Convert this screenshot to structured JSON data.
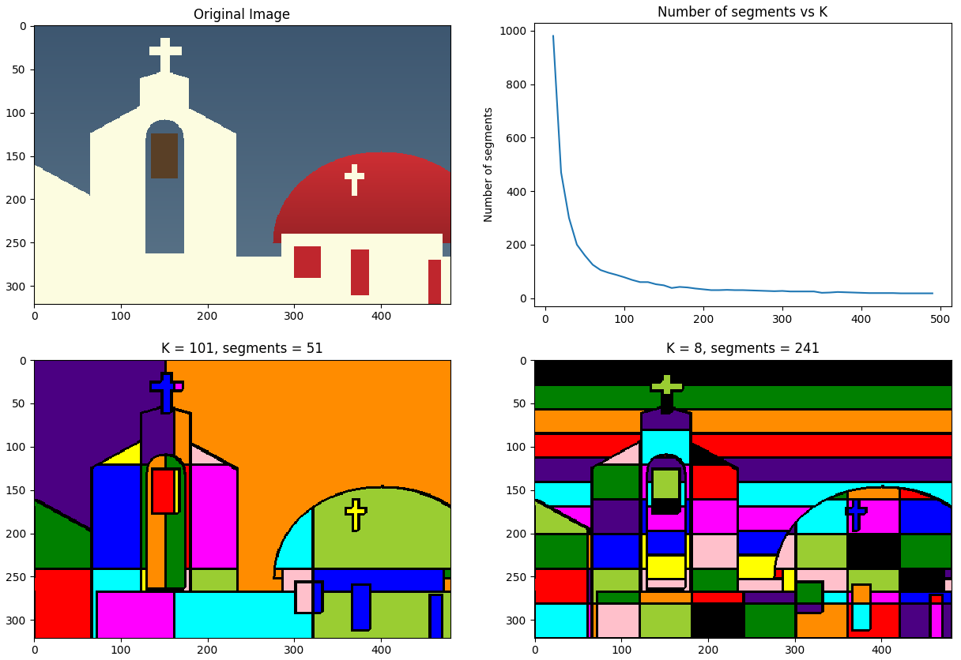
{
  "chart_data": [
    {
      "type": "image",
      "title": "Original Image",
      "xlim": [
        -0.5,
        480.5
      ],
      "ylim": [
        320.5,
        -0.5
      ],
      "xticks": [
        0,
        100,
        200,
        300,
        400
      ],
      "yticks": [
        0,
        50,
        100,
        150,
        200,
        250,
        300
      ]
    },
    {
      "type": "line",
      "title": "Number of segments vs K",
      "ylabel": "Number of segments",
      "color": "#1f77b4",
      "x": [
        10,
        20,
        30,
        40,
        50,
        60,
        70,
        80,
        90,
        100,
        110,
        120,
        130,
        140,
        150,
        160,
        170,
        180,
        190,
        200,
        210,
        220,
        230,
        240,
        250,
        260,
        270,
        280,
        290,
        300,
        310,
        320,
        330,
        340,
        350,
        360,
        370,
        380,
        390,
        400,
        410,
        420,
        430,
        440,
        450,
        460,
        470,
        480,
        490
      ],
      "values": [
        980,
        470,
        300,
        200,
        160,
        125,
        105,
        95,
        87,
        78,
        68,
        60,
        60,
        52,
        48,
        38,
        42,
        40,
        36,
        33,
        30,
        30,
        31,
        30,
        30,
        29,
        28,
        27,
        26,
        27,
        25,
        25,
        25,
        25,
        20,
        21,
        23,
        22,
        21,
        20,
        19,
        19,
        19,
        19,
        18,
        18,
        18,
        18,
        18
      ],
      "xlim": [
        -14,
        514
      ],
      "ylim": [
        -30,
        1028
      ],
      "xticks": [
        0,
        100,
        200,
        300,
        400,
        500
      ],
      "yticks": [
        0,
        200,
        400,
        600,
        800,
        1000
      ]
    },
    {
      "type": "segmentation",
      "title": "K = 101, segments = 51",
      "colors": [
        "#4b0082",
        "#ff8c00",
        "#008000",
        "#ff0000",
        "#ffff00",
        "#ffc0cb",
        "#0000ff",
        "#ff00ff",
        "#00ffff",
        "#9acd32"
      ],
      "color": "#000000",
      "xlim": [
        -0.5,
        480.5
      ],
      "ylim": [
        320.5,
        -0.5
      ],
      "xticks": [
        0,
        100,
        200,
        300,
        400
      ],
      "yticks": [
        0,
        50,
        100,
        150,
        200,
        250,
        300
      ]
    },
    {
      "type": "segmentation",
      "title": "K = 8, segments = 241",
      "colors": [
        "#000000",
        "#008000",
        "#ff8c00",
        "#ff0000",
        "#4b0082",
        "#00ffff",
        "#ff00ff",
        "#0000ff",
        "#ffff00",
        "#ffc0cb",
        "#9acd32"
      ],
      "color": "#000000",
      "xlim": [
        -0.5,
        480.5
      ],
      "ylim": [
        320.5,
        -0.5
      ],
      "xticks": [
        0,
        100,
        200,
        300,
        400
      ],
      "yticks": [
        0,
        50,
        100,
        150,
        200,
        250,
        300
      ]
    }
  ]
}
